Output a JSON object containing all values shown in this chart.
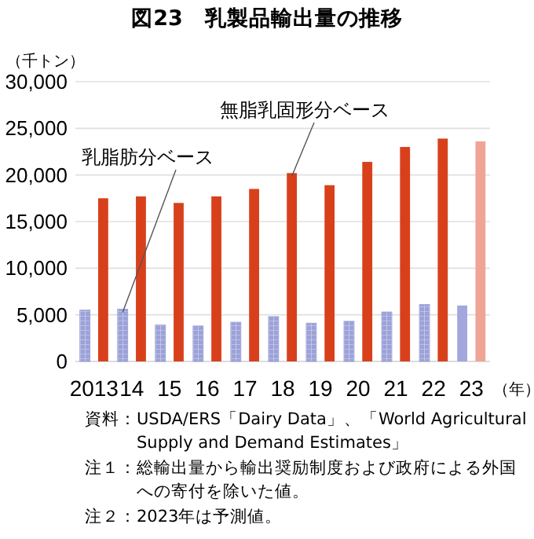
{
  "chart_data": {
    "type": "bar",
    "title": "図23　乳製品輸出量の推移",
    "ylabel": "（千トン）",
    "xlabel": "（年）",
    "categories": [
      "2013",
      "14",
      "15",
      "16",
      "17",
      "18",
      "19",
      "20",
      "21",
      "22",
      "23"
    ],
    "series": [
      {
        "name": "乳脂肪分ベース",
        "color": "#9ca2d8",
        "colors": [
          "#9ca2d8",
          "#9ca2d8",
          "#9ca2d8",
          "#9ca2d8",
          "#9ca2d8",
          "#9ca2d8",
          "#9ca2d8",
          "#9ca2d8",
          "#9ca2d8",
          "#9ca2d8",
          "#a3a7dc"
        ],
        "values": [
          5500,
          5600,
          3900,
          3800,
          4200,
          4800,
          4100,
          4300,
          5300,
          6100,
          6000
        ]
      },
      {
        "name": "無脂乳固形分ベース",
        "color": "#d8401c",
        "colors": [
          "#d8401c",
          "#d8401c",
          "#d8401c",
          "#d8401c",
          "#d8401c",
          "#d8401c",
          "#d8401c",
          "#d8401c",
          "#d8401c",
          "#d8401c",
          "#f0a496"
        ],
        "values": [
          17500,
          17700,
          17000,
          17700,
          18500,
          20200,
          18900,
          21400,
          23000,
          23900,
          23600
        ]
      }
    ],
    "ylim": [
      0,
      30000
    ],
    "yticks": [
      {
        "value": 0,
        "label": "0"
      },
      {
        "value": 5000,
        "label": "5,000"
      },
      {
        "value": 10000,
        "label": "10,000"
      },
      {
        "value": 15000,
        "label": "15,000"
      },
      {
        "value": 20000,
        "label": "20,000"
      },
      {
        "value": 25000,
        "label": "25,000"
      },
      {
        "value": 30000,
        "label": "30,000"
      }
    ],
    "grid": "y",
    "legend": false,
    "annotations": [
      "資料：USDA/ERS「Dairy Data」、「World Agricultural Supply and Demand Estimates」",
      "注１：総輸出量から輸出奨励制度および政府による外国への寄付を除いた値。",
      "注２：2023年は予測値。"
    ]
  }
}
